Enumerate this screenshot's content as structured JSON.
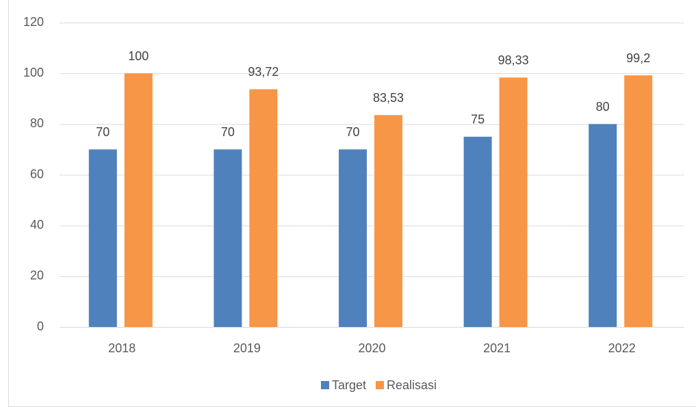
{
  "chart_data": {
    "type": "bar",
    "categories": [
      "2018",
      "2019",
      "2020",
      "2021",
      "2022"
    ],
    "series": [
      {
        "name": "Target",
        "color": "#4f81bd",
        "values": [
          70,
          70,
          70,
          75,
          80
        ]
      },
      {
        "name": "Realisasi",
        "color": "#f79646",
        "values": [
          100,
          93.72,
          83.53,
          98.33,
          99.2
        ],
        "value_labels": [
          "100",
          "93,72",
          "83,53",
          "98,33",
          "99,2"
        ]
      }
    ],
    "ylim": [
      0,
      120
    ],
    "yticks": [
      0,
      20,
      40,
      60,
      80,
      100,
      120
    ],
    "grid": true,
    "legend": "bottom"
  }
}
